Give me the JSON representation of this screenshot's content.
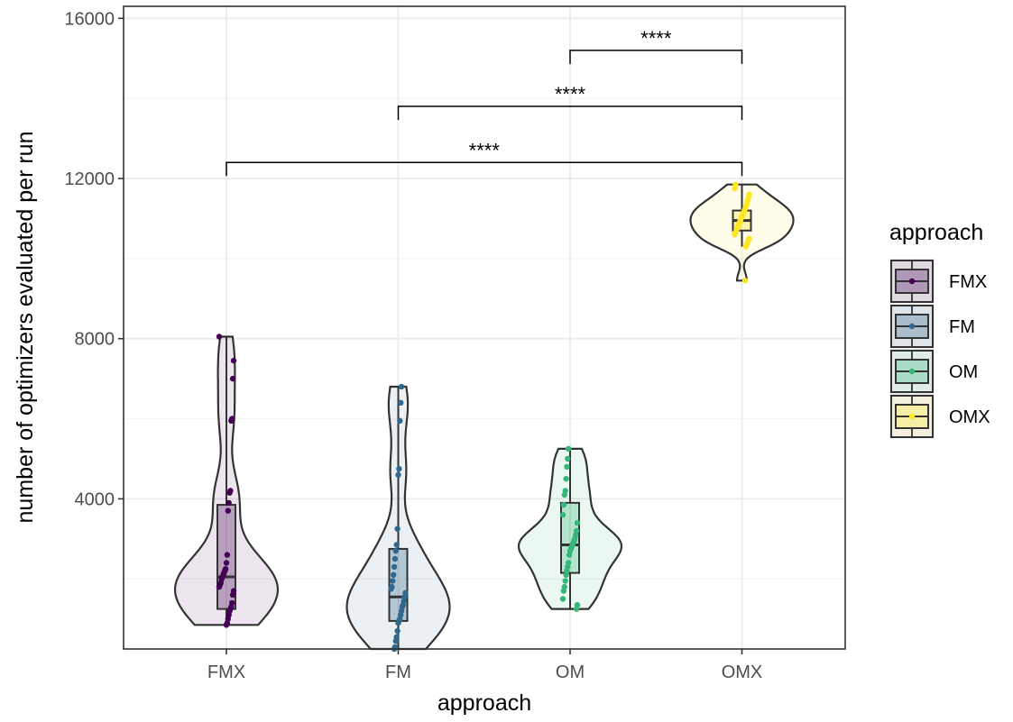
{
  "chart_data": {
    "type": "violin",
    "xlabel": "approach",
    "ylabel": "number of optimizers evaluated per run",
    "ylim": [
      250,
      16300
    ],
    "yticks": [
      4000,
      8000,
      12000,
      16000
    ],
    "ytick_labels": [
      "4000",
      "8000",
      "12000",
      "16000"
    ],
    "grid": true,
    "legend": {
      "title": "approach",
      "position": "right"
    },
    "categories": [
      "FMX",
      "FM",
      "OM",
      "OMX"
    ],
    "colors": {
      "FMX": "#440154",
      "FM": "#31688e",
      "OM": "#35b779",
      "OMX": "#fde725"
    },
    "series": [
      {
        "name": "FMX",
        "box": {
          "q1": 1250,
          "median": 2050,
          "q3": 3850,
          "whisker_low": 850,
          "whisker_high": 8050
        },
        "range": [
          850,
          8050
        ],
        "points": [
          8050,
          7450,
          7000,
          6000,
          5950,
          4200,
          4150,
          3900,
          3700,
          2600,
          2400,
          2250,
          2200,
          2150,
          2100,
          2050,
          2000,
          1900,
          1850,
          1800,
          1700,
          1600,
          1400,
          1300,
          1250,
          1200,
          1100,
          1000,
          900,
          850
        ]
      },
      {
        "name": "FM",
        "box": {
          "q1": 950,
          "median": 1550,
          "q3": 2750,
          "whisker_low": 250,
          "whisker_high": 6800
        },
        "range": [
          250,
          6800
        ],
        "points": [
          6800,
          6400,
          5950,
          4750,
          4600,
          3250,
          2850,
          2700,
          2500,
          2300,
          2100,
          1950,
          1800,
          1750,
          1650,
          1550,
          1450,
          1350,
          1300,
          1200,
          1100,
          1000,
          950,
          900,
          700,
          550,
          450,
          300,
          250
        ]
      },
      {
        "name": "OM",
        "box": {
          "q1": 2150,
          "median": 2850,
          "q3": 3900,
          "whisker_low": 1250,
          "whisker_high": 5250
        },
        "range": [
          1250,
          5250
        ],
        "points": [
          5250,
          5000,
          4800,
          4500,
          4200,
          4100,
          3850,
          3600,
          3400,
          3200,
          3100,
          3000,
          2950,
          2900,
          2850,
          2800,
          2750,
          2700,
          2600,
          2400,
          2300,
          2200,
          2100,
          1950,
          1800,
          1700,
          1500,
          1350,
          1250
        ]
      },
      {
        "name": "OMX",
        "box": {
          "q1": 10700,
          "median": 10950,
          "q3": 11200,
          "whisker_low": 10300,
          "whisker_high": 11850
        },
        "range": [
          9450,
          11850
        ],
        "points": [
          11850,
          11750,
          11600,
          11500,
          11450,
          11350,
          11300,
          11250,
          11200,
          11150,
          11100,
          11050,
          11000,
          10950,
          10900,
          10850,
          10800,
          10750,
          10700,
          10650,
          10600,
          10500,
          10450,
          10400,
          10350,
          10300,
          9450
        ]
      }
    ],
    "annotations": [
      {
        "from": "OM",
        "to": "OMX",
        "label": "****",
        "y": 15200
      },
      {
        "from": "FM",
        "to": "OMX",
        "label": "****",
        "y": 13800
      },
      {
        "from": "FMX",
        "to": "OMX",
        "label": "****",
        "y": 12400
      }
    ]
  }
}
